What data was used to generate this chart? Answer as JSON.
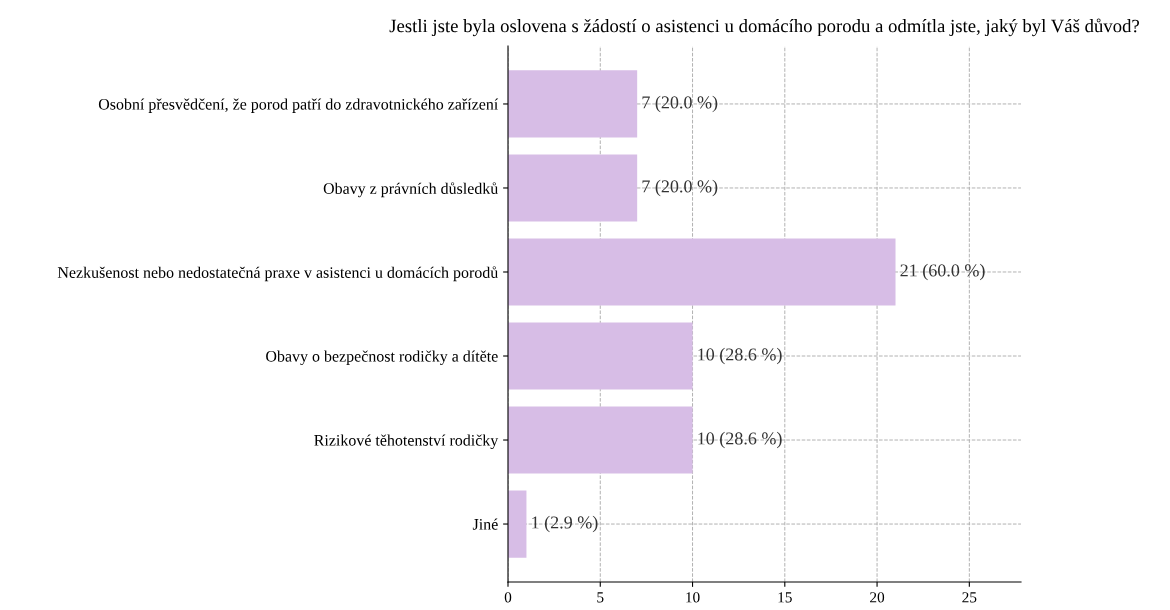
{
  "chart_data": {
    "type": "bar",
    "orientation": "horizontal",
    "title": "Jestli jste byla oslovena s žádostí o asistenci u domácího porodu a odmítla jste, jaký byl Váš důvod?",
    "categories": [
      "Osobní přesvědčení, že porod patří do zdravotnického zařízení",
      "Obavy z právních důsledků",
      "Nezkušenost nebo nedostatečná praxe v asistenci u domácích porodů",
      "Obavy o bezpečnost rodičky a dítěte",
      "Rizikové těhotenství rodičky",
      "Jiné"
    ],
    "values": [
      7,
      7,
      21,
      10,
      10,
      1
    ],
    "value_labels": [
      "7 (20.0 %)",
      "7 (20.0 %)",
      "21 (60.0 %)",
      "10 (28.6 %)",
      "10 (28.6 %)",
      "1 (2.9 %)"
    ],
    "color": "#d7bde6",
    "xlim": [
      0,
      27.8
    ],
    "xticks": [
      0,
      5,
      10,
      15,
      20,
      25
    ],
    "grid": true
  }
}
